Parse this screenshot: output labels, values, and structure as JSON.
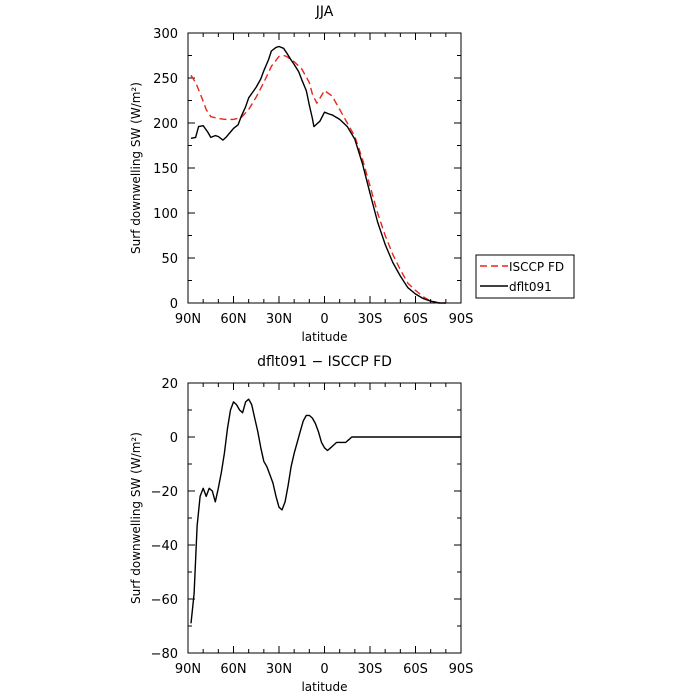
{
  "chart_data": [
    {
      "type": "line",
      "title": "JJA",
      "xlabel": "latitude",
      "ylabel": "Surf downwelling SW (W/m²)",
      "xlim": [
        90,
        -90
      ],
      "ylim": [
        0,
        300
      ],
      "x_ticks": [
        90,
        60,
        30,
        0,
        -30,
        -60,
        -90
      ],
      "x_tick_labels": [
        "90N",
        "60N",
        "30N",
        "0",
        "30S",
        "60S",
        "90S"
      ],
      "y_ticks": [
        0,
        50,
        100,
        150,
        200,
        250,
        300
      ],
      "y_tick_labels": [
        "0",
        "50",
        "100",
        "150",
        "200",
        "250",
        "300"
      ],
      "legend_placement": "right",
      "series": [
        {
          "name": "ISCCP FD",
          "color": "#e8261c",
          "dash": "dashed",
          "x": [
            88,
            85,
            82,
            80,
            78,
            75,
            70,
            65,
            60,
            55,
            50,
            45,
            40,
            35,
            30,
            27,
            25,
            20,
            15,
            10,
            8,
            5,
            0,
            -5,
            -10,
            -15,
            -20,
            -25,
            -30,
            -35,
            -40,
            -45,
            -50,
            -55,
            -60,
            -65,
            -70,
            -75,
            -80
          ],
          "values": [
            253,
            245,
            233,
            224,
            215,
            207,
            205,
            204,
            204,
            206,
            215,
            229,
            245,
            263,
            274,
            275,
            274,
            268,
            260,
            245,
            232,
            222,
            236,
            230,
            215,
            200,
            185,
            160,
            130,
            100,
            75,
            54,
            37,
            22,
            14,
            7,
            2,
            0.5,
            0
          ]
        },
        {
          "name": "dflt091",
          "color": "#000000",
          "dash": "solid",
          "x": [
            88,
            85,
            83,
            80,
            77,
            75,
            72,
            70,
            67,
            65,
            62,
            60,
            57,
            55,
            52,
            50,
            47,
            45,
            42,
            40,
            37,
            35,
            32,
            30,
            27,
            25,
            22,
            20,
            17,
            15,
            12,
            10,
            8,
            7,
            5,
            3,
            0,
            -3,
            -5,
            -10,
            -15,
            -20,
            -25,
            -30,
            -35,
            -40,
            -45,
            -50,
            -55,
            -60,
            -65,
            -70,
            -73,
            -75,
            -80
          ],
          "values": [
            183,
            184,
            196,
            197,
            190,
            184,
            186,
            185,
            181,
            184,
            190,
            194,
            198,
            207,
            218,
            228,
            235,
            240,
            249,
            258,
            270,
            280,
            284,
            285,
            283,
            278,
            270,
            265,
            257,
            248,
            236,
            220,
            205,
            196,
            199,
            202,
            212,
            210,
            209,
            204,
            196,
            182,
            155,
            122,
            90,
            65,
            45,
            30,
            17,
            10,
            5,
            2,
            1,
            0,
            0
          ]
        }
      ]
    },
    {
      "type": "line",
      "title": "dflt091 − ISCCP FD",
      "xlabel": "latitude",
      "ylabel": "Surf downwelling SW (W/m²)",
      "xlim": [
        90,
        -90
      ],
      "ylim": [
        -80,
        20
      ],
      "x_ticks": [
        90,
        60,
        30,
        0,
        -30,
        -60,
        -90
      ],
      "x_tick_labels": [
        "90N",
        "60N",
        "30N",
        "0",
        "30S",
        "60S",
        "90S"
      ],
      "y_ticks": [
        -80,
        -60,
        -40,
        -20,
        0,
        20
      ],
      "y_tick_labels": [
        "−80",
        "−60",
        "−40",
        "−20",
        "0",
        "20"
      ],
      "series": [
        {
          "name": "",
          "color": "#000000",
          "dash": "solid",
          "x": [
            88,
            86,
            84,
            82,
            80,
            78,
            76,
            74,
            72,
            70,
            68,
            66,
            64,
            62,
            60,
            58,
            56,
            54,
            52,
            50,
            48,
            46,
            44,
            42,
            40,
            38,
            36,
            34,
            32,
            30,
            28,
            26,
            24,
            22,
            20,
            18,
            16,
            14,
            12,
            10,
            8,
            6,
            4,
            2,
            0,
            -2,
            -4,
            -6,
            -8,
            -10,
            -12,
            -14,
            -16,
            -18,
            -20,
            -22,
            -24,
            -26,
            -28,
            -30,
            -32,
            -34,
            -36,
            -38,
            -40,
            -42,
            -44,
            -46,
            -48,
            -50,
            -52,
            -54,
            -56,
            -58,
            -60,
            -62,
            -64,
            -66,
            -68,
            -70,
            -72,
            -74,
            -76,
            -78,
            -80,
            -82,
            -84,
            -86,
            -88,
            -90
          ],
          "values": [
            -69,
            -58,
            -33,
            -22,
            -19,
            -22,
            -19,
            -20,
            -24,
            -19,
            -13,
            -6,
            3,
            10,
            13,
            12,
            10,
            9,
            13,
            14,
            12,
            7,
            2,
            -4,
            -9,
            -11,
            -14,
            -17,
            -22,
            -26,
            -27,
            -24,
            -18,
            -11,
            -6,
            -2,
            2,
            6,
            8,
            8,
            7,
            5,
            2,
            -2,
            -4,
            -5,
            -4,
            -3,
            -2,
            -2,
            -2,
            -2,
            -1,
            0,
            0,
            0,
            0,
            0,
            0,
            0,
            0,
            0,
            0,
            0,
            0,
            0,
            0,
            0,
            0,
            0,
            0,
            0,
            0,
            0,
            0,
            0,
            0,
            0,
            0,
            0,
            0,
            0,
            0,
            0,
            0,
            0,
            0,
            0,
            0,
            0
          ]
        }
      ]
    }
  ]
}
